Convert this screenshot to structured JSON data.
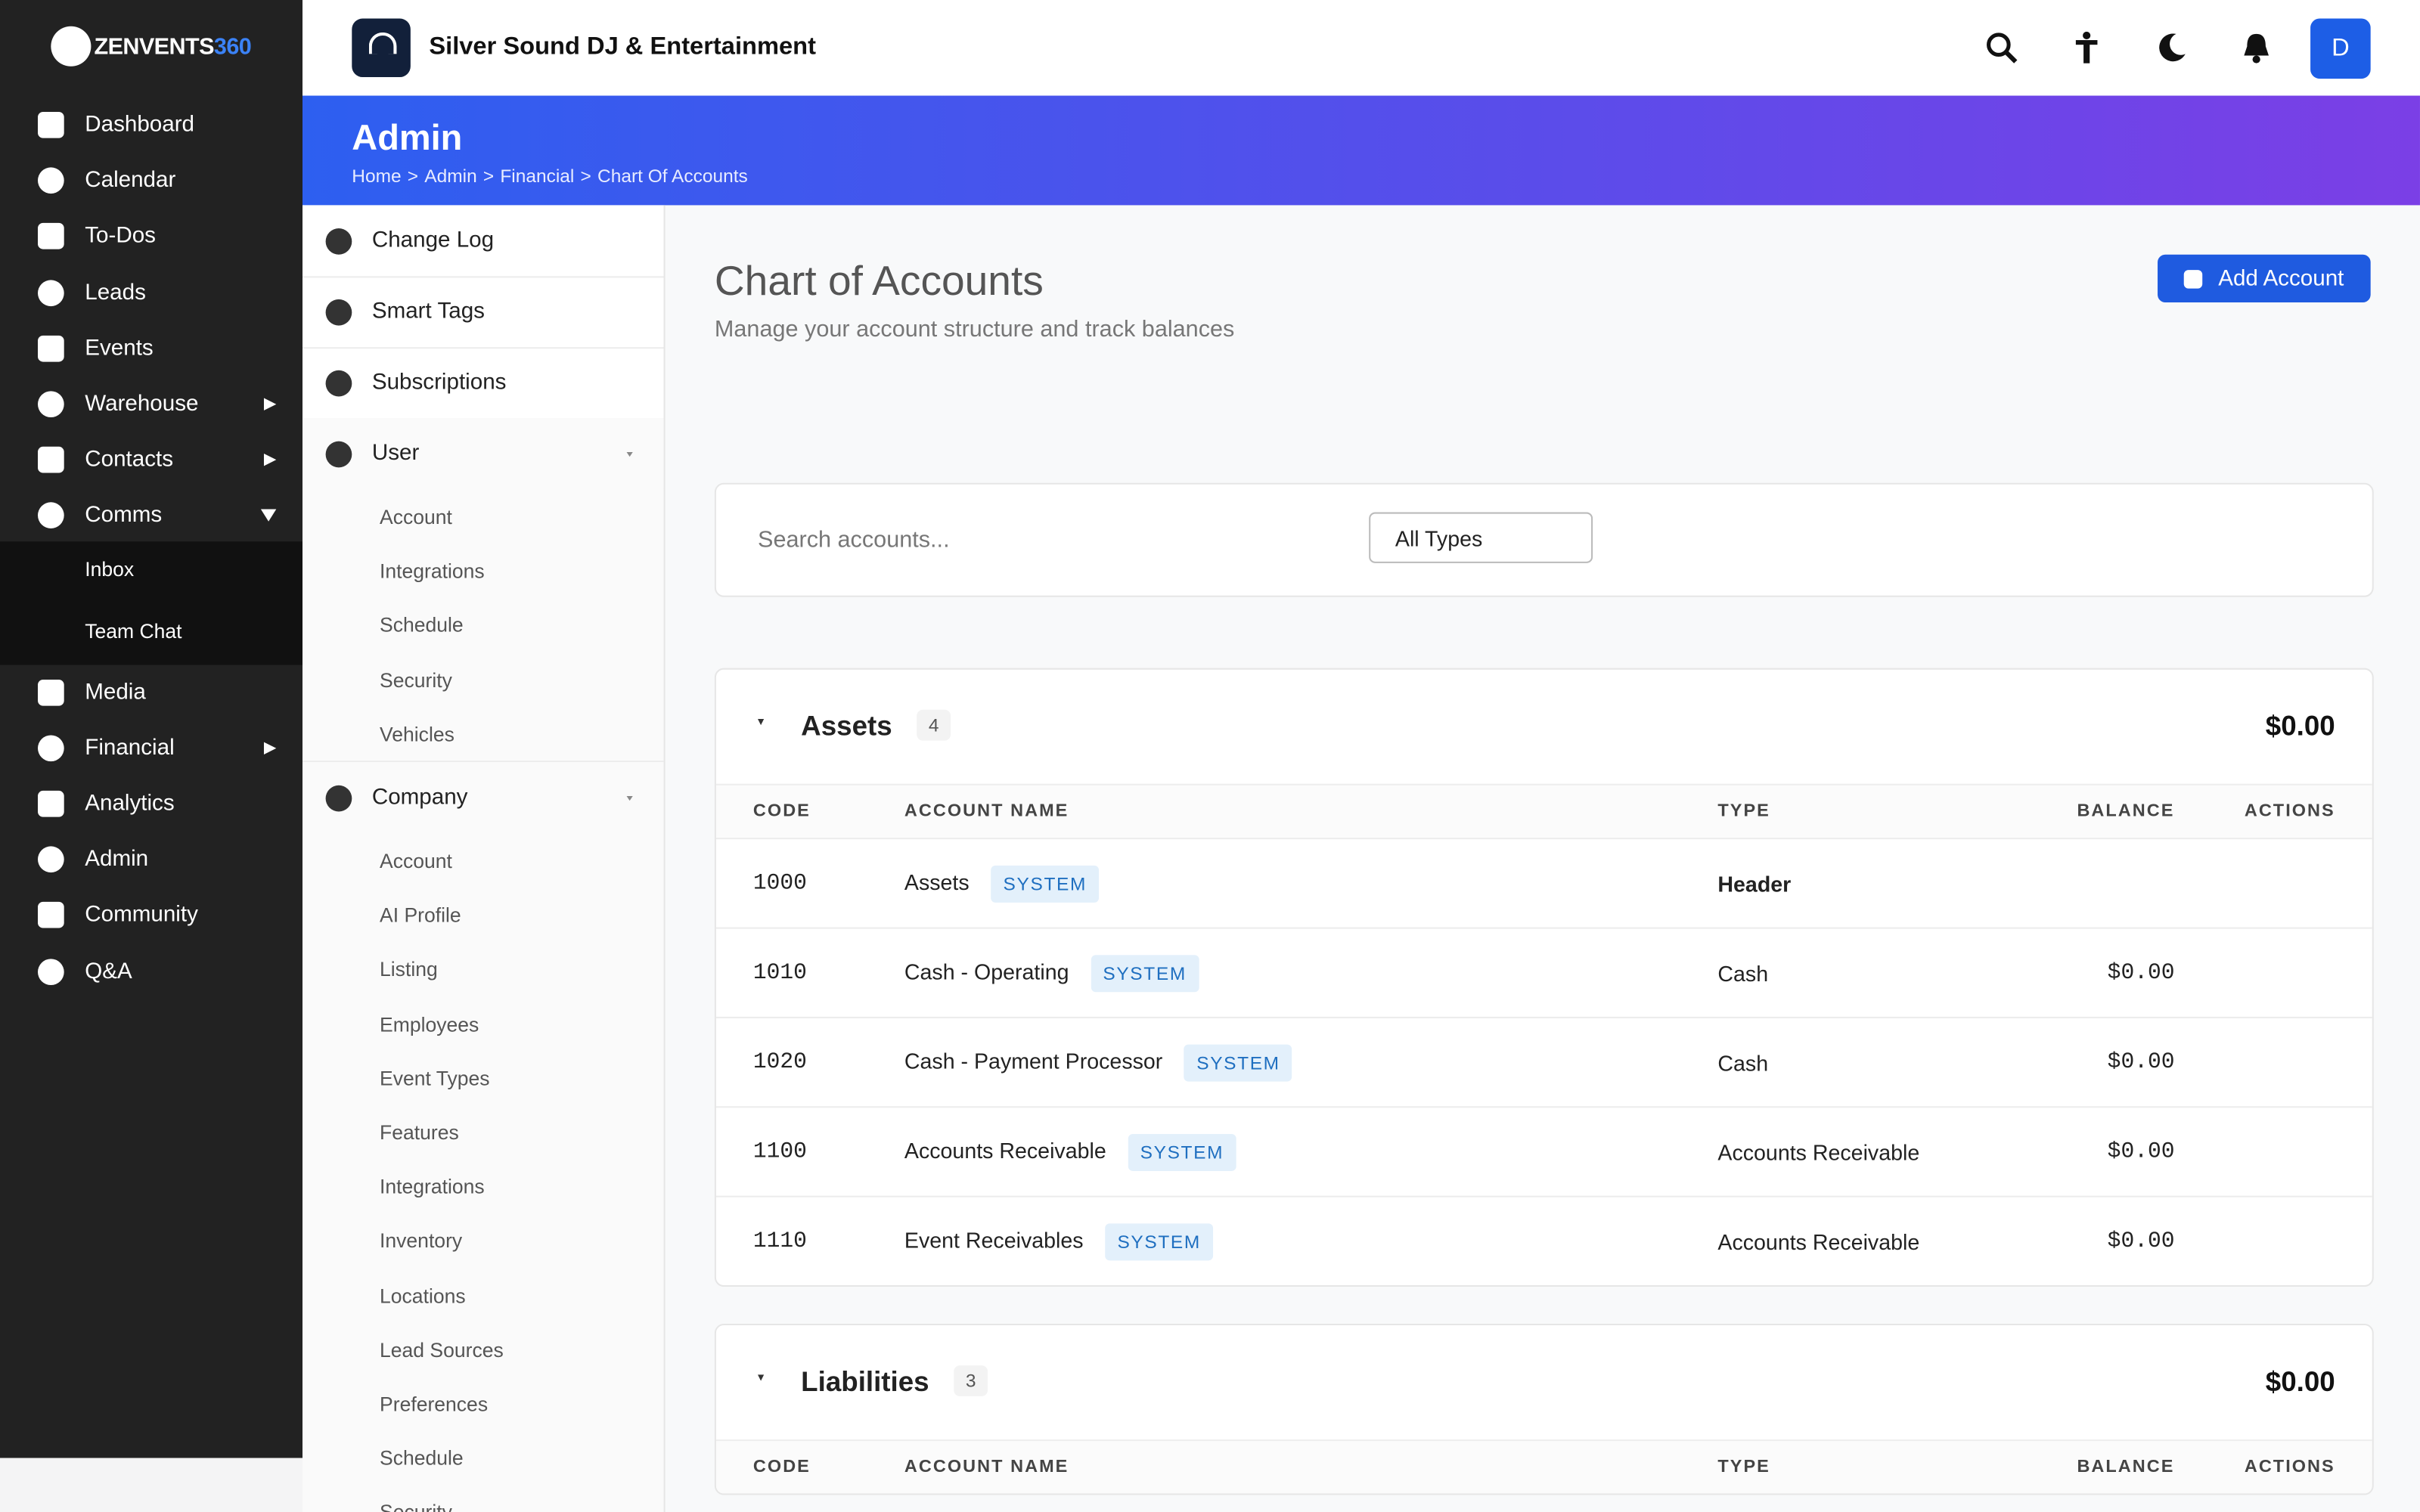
{
  "brand": {
    "name": "ZENVENTS",
    "suffix": "360"
  },
  "nav": [
    {
      "label": "Dashboard"
    },
    {
      "label": "Calendar"
    },
    {
      "label": "To-Dos"
    },
    {
      "label": "Leads"
    },
    {
      "label": "Events"
    },
    {
      "label": "Warehouse",
      "submenu": "closed"
    },
    {
      "label": "Contacts",
      "submenu": "closed"
    },
    {
      "label": "Comms",
      "submenu": "open",
      "children": [
        "Inbox",
        "Team Chat"
      ]
    },
    {
      "label": "Media"
    },
    {
      "label": "Financial",
      "submenu": "closed"
    },
    {
      "label": "Analytics"
    },
    {
      "label": "Admin"
    },
    {
      "label": "Community"
    },
    {
      "label": "Q&A"
    }
  ],
  "header": {
    "company": "Silver Sound DJ & Entertainment",
    "avatar": "D"
  },
  "banner": {
    "title": "Admin",
    "breadcrumb": [
      "Home",
      "Admin",
      "Financial",
      "Chart Of Accounts"
    ],
    "separator": ">"
  },
  "settings": [
    {
      "label": "Change Log"
    },
    {
      "label": "Smart Tags"
    },
    {
      "label": "Subscriptions"
    },
    {
      "label": "User",
      "children": [
        "Account",
        "Integrations",
        "Schedule",
        "Security",
        "Vehicles"
      ]
    },
    {
      "label": "Company",
      "children": [
        "Account",
        "AI Profile",
        "Listing",
        "Employees",
        "Event Types",
        "Features",
        "Integrations",
        "Inventory",
        "Locations",
        "Lead Sources",
        "Preferences",
        "Schedule",
        "Security"
      ]
    }
  ],
  "main": {
    "title": "Chart of Accounts",
    "subtitle": "Manage your account structure and track balances",
    "add_button": "Add Account",
    "search_placeholder": "Search accounts...",
    "type_filter": "All Types"
  },
  "groups": [
    {
      "name": "Assets",
      "count": 4,
      "total": "$0.00",
      "columns": [
        "CODE",
        "ACCOUNT NAME",
        "TYPE",
        "BALANCE",
        "ACTIONS"
      ],
      "accounts": [
        {
          "code": "1000",
          "name": "Assets",
          "badge": "SYSTEM",
          "type": "Header"
        },
        {
          "code": "1010",
          "name": "Cash - Operating",
          "badge": "SYSTEM",
          "type": "Cash",
          "balance": "$0.00"
        },
        {
          "code": "1020",
          "name": "Cash - Payment Processor",
          "badge": "SYSTEM",
          "type": "Cash",
          "balance": "$0.00"
        },
        {
          "code": "1100",
          "name": "Accounts Receivable",
          "badge": "SYSTEM",
          "type": "Accounts Receivable",
          "balance": "$0.00"
        },
        {
          "code": "1110",
          "name": "Event Receivables",
          "badge": "SYSTEM",
          "type": "Accounts Receivable",
          "balance": "$0.00"
        }
      ]
    },
    {
      "name": "Liabilities",
      "count": 3,
      "total": "$0.00",
      "columns": [
        "CODE",
        "ACCOUNT NAME",
        "TYPE",
        "BALANCE",
        "ACTIONS"
      ],
      "accounts": []
    }
  ]
}
